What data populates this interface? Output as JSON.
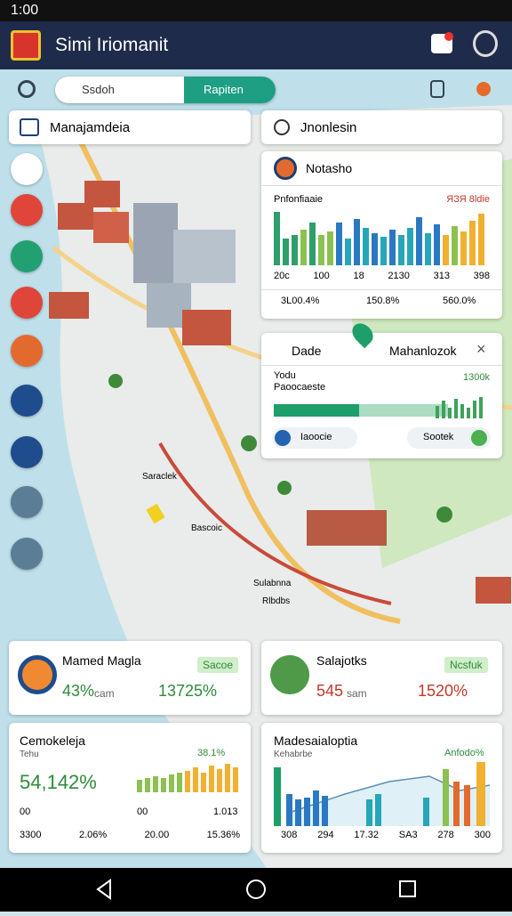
{
  "status_bar": {
    "time": "1:00"
  },
  "header": {
    "title": "Simi Iriomanit"
  },
  "search": {
    "placeholder": "Ssdoh",
    "button": "Rapiten"
  },
  "panels": {
    "left": {
      "title": "Manajamdeia"
    },
    "right": {
      "title": "Jnonlesin"
    }
  },
  "notasho": {
    "title": "Notasho",
    "label_left": "Pnfonfiaaie",
    "label_right": "ЯЗЯ 8ldie",
    "axis": [
      "20c",
      "100",
      "18",
      "2130",
      "313",
      "398"
    ],
    "footer_left": "3L00.4%",
    "footer_right": "150.8%",
    "footer_end": "560.0%"
  },
  "detail": {
    "tab_left": "Dade",
    "tab_right": "Mahanlozok",
    "label1": "Yodu",
    "label2": "Paoocaeste",
    "value": "1300k",
    "button_left": "Iaoocie",
    "button_right": "Sootek"
  },
  "map_labels": [
    "Bascoic",
    "Sulabnna",
    "Rlbdbs",
    "Saraclek"
  ],
  "cards": [
    {
      "title": "Mamed Magla",
      "badge": "Sacoe",
      "stat1": "43%",
      "unit": "cam",
      "stat2": "13725%"
    },
    {
      "title": "Salajotks",
      "badge": "Ncsfuk",
      "stat1": "545",
      "unit": "sam",
      "stat2": "1520%"
    }
  ],
  "charts": [
    {
      "title": "Cemokeleja",
      "subtitle": "Tehu",
      "big": "54,142%",
      "badge": "38.1%",
      "axis": [
        "00",
        "00",
        "1.013"
      ],
      "footer": [
        "3300",
        "2.06%",
        "20.00",
        "15.36%"
      ]
    },
    {
      "title": "Madesaialoptia",
      "subtitle": "Kehabrbe",
      "badge": "Anfodo%",
      "axis": [
        "308",
        "294",
        "17.32",
        "SA3",
        "278",
        "300"
      ]
    }
  ]
}
